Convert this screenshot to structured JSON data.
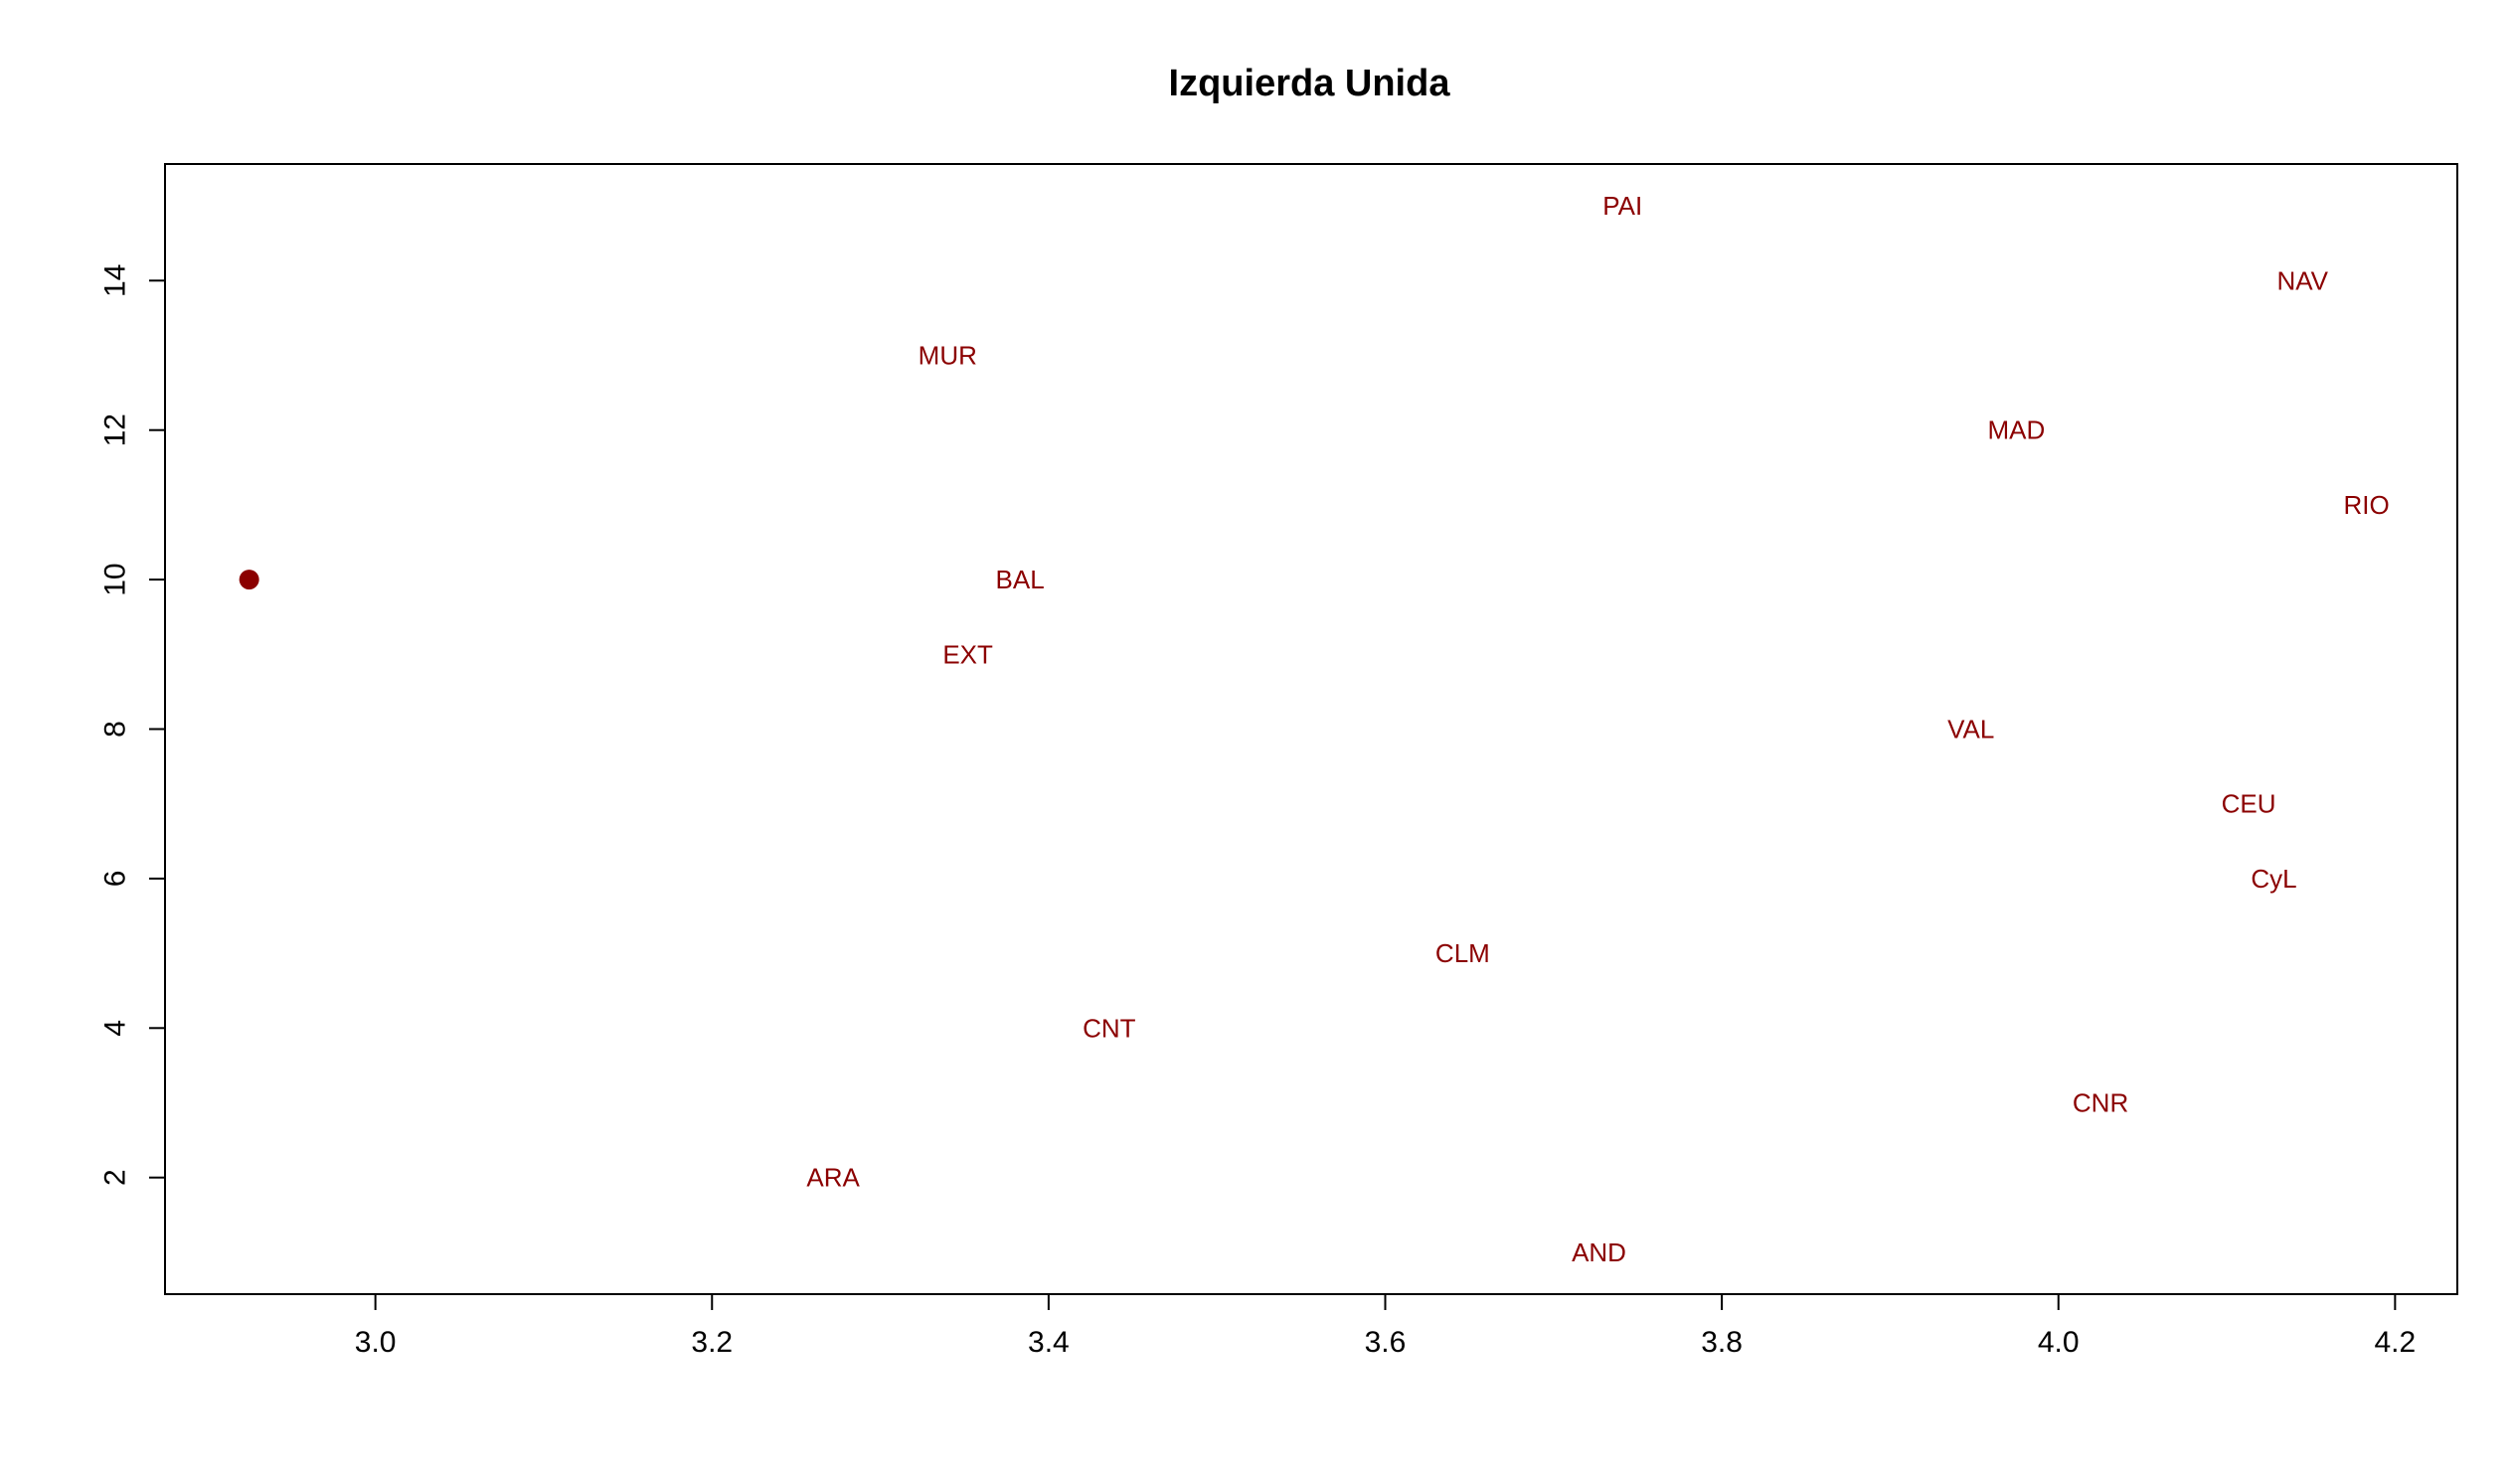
{
  "chart_data": {
    "type": "scatter",
    "title": "Izquierda Unida",
    "xlabel": "",
    "ylabel": "",
    "xlim": [
      2.875,
      4.237
    ],
    "ylim": [
      0.44,
      15.56
    ],
    "x_ticks": [
      3.0,
      3.2,
      3.4,
      3.6,
      3.8,
      4.0,
      4.2
    ],
    "x_tick_labels": [
      "3.0",
      "3.2",
      "3.4",
      "3.6",
      "3.8",
      "4.0",
      "4.2"
    ],
    "y_ticks": [
      2,
      4,
      6,
      8,
      10,
      12,
      14
    ],
    "y_tick_labels": [
      "2",
      "4",
      "6",
      "8",
      "10",
      "12",
      "14"
    ],
    "grid": false,
    "legend": "none",
    "color": "#8b0000",
    "marker_points": [
      {
        "x": 2.925,
        "y": 10
      }
    ],
    "labeled_points": [
      {
        "label": "AND",
        "x": 3.727,
        "y": 1
      },
      {
        "label": "ARA",
        "x": 3.272,
        "y": 2
      },
      {
        "label": "CNR",
        "x": 4.025,
        "y": 3
      },
      {
        "label": "CNT",
        "x": 3.436,
        "y": 4
      },
      {
        "label": "CLM",
        "x": 3.646,
        "y": 5
      },
      {
        "label": "CyL",
        "x": 4.128,
        "y": 6
      },
      {
        "label": "CEU",
        "x": 4.113,
        "y": 7
      },
      {
        "label": "VAL",
        "x": 3.948,
        "y": 8
      },
      {
        "label": "EXT",
        "x": 3.352,
        "y": 9
      },
      {
        "label": "BAL",
        "x": 3.383,
        "y": 10
      },
      {
        "label": "RIO",
        "x": 4.183,
        "y": 11
      },
      {
        "label": "MAD",
        "x": 3.975,
        "y": 12
      },
      {
        "label": "MUR",
        "x": 3.34,
        "y": 13
      },
      {
        "label": "NAV",
        "x": 4.145,
        "y": 14
      },
      {
        "label": "PAI",
        "x": 3.741,
        "y": 15
      }
    ]
  }
}
